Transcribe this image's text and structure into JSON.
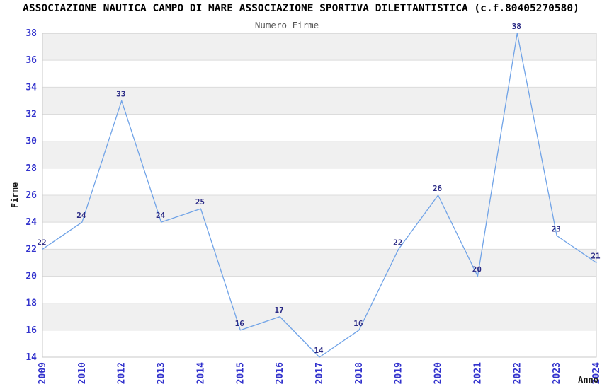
{
  "header": {
    "title": "ASSOCIAZIONE NAUTICA CAMPO DI MARE ASSOCIAZIONE SPORTIVA DILETTANTISTICA (c.f.80405270580)",
    "subtitle": "Numero Firme"
  },
  "chart_data": {
    "type": "line",
    "title": "ASSOCIAZIONE NAUTICA CAMPO DI MARE ASSOCIAZIONE SPORTIVA DILETTANTISTICA (c.f.80405270580)",
    "subtitle": "Numero Firme",
    "xlabel": "Anno",
    "ylabel": "Firme",
    "categories": [
      "2009",
      "2010",
      "2012",
      "2013",
      "2014",
      "2015",
      "2016",
      "2017",
      "2018",
      "2019",
      "2020",
      "2021",
      "2022",
      "2023",
      "2024"
    ],
    "values": [
      22,
      24,
      33,
      24,
      25,
      16,
      17,
      14,
      16,
      22,
      26,
      20,
      38,
      23,
      21
    ],
    "ylim": [
      14,
      38
    ],
    "ytick_step": 2,
    "yticks": [
      14,
      16,
      18,
      20,
      22,
      24,
      26,
      28,
      30,
      32,
      34,
      36,
      38
    ],
    "grid": "horizontal-bands-alternating",
    "legend": "none",
    "point_labels_shown": true,
    "colors": {
      "line": "#70a3e7",
      "tick_label": "#3232cd",
      "point_label": "#2a2a85",
      "band_gray": "#f0f0f0",
      "band_white": "#ffffff",
      "grid_line": "#dcdcdc",
      "plot_border": "#c9c9c9",
      "title": "#000000",
      "subtitle": "#555555",
      "axis_label": "#1a1a1a",
      "background": "#ffffff"
    }
  }
}
